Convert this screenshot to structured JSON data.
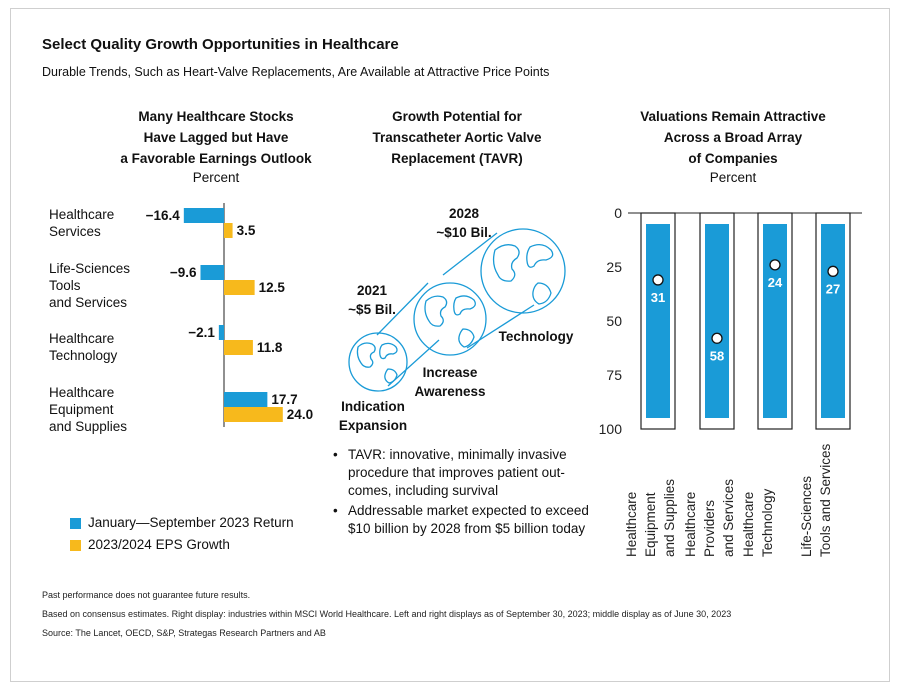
{
  "header": {
    "title": "Select Quality Growth Opportunities in Healthcare",
    "subtitle": "Durable Trends, Such as Heart-Valve Replacements, Are Available at Attractive Price Points"
  },
  "left_panel": {
    "title_lines": [
      "Many Healthcare Stocks",
      "Have Lagged but Have",
      "a Favorable Earnings Outlook"
    ],
    "unit": "Percent",
    "category_lines": [
      [
        "Healthcare",
        "Services"
      ],
      [
        "Life-Sciences",
        "Tools",
        "and Services"
      ],
      [
        "Healthcare",
        "Technology"
      ],
      [
        "Healthcare",
        "Equipment",
        "and Supplies"
      ]
    ],
    "legend": [
      {
        "label": "January—September 2023 Return",
        "color": "#1a9bd7"
      },
      {
        "label": "2023/2024 EPS Growth",
        "color": "#f7b91c"
      }
    ]
  },
  "middle_panel": {
    "title_lines": [
      "Growth Potential for",
      "Transcatheter Aortic Valve",
      "Replacement (TAVR)"
    ],
    "label_2028": [
      "2028",
      "~$10 Bil."
    ],
    "label_2021": [
      "2021",
      "~$5 Bil."
    ],
    "stage_technology": "Technology",
    "stage_awareness": [
      "Increase",
      "Awareness"
    ],
    "stage_indication": [
      "Indication",
      "Expansion"
    ],
    "bullets": [
      "TAVR: innovative, minimally invasive procedure that improves patient out-comes, including survival",
      "Addressable market expected to exceed $10 billion by 2028 from $5 billion today"
    ]
  },
  "right_panel": {
    "title_lines": [
      "Valuations Remain Attractive",
      "Across a Broad Array",
      "of Companies"
    ],
    "unit": "Percent",
    "category_lines": [
      [
        "Healthcare",
        "Equipment",
        "and Supplies"
      ],
      [
        "Healthcare",
        "Providers",
        "and Services"
      ],
      [
        "Healthcare",
        "Technology"
      ],
      [
        "Life-Sciences",
        "Tools and Services"
      ]
    ]
  },
  "footnotes": [
    "Past performance does not guarantee future results.",
    "Based on consensus estimates. Right display: industries within MSCI World Healthcare. Left and right displays as of September 30, 2023; middle display as of June 30, 2023",
    "Source: The Lancet, OECD, S&P, Strategas Research Partners and AB"
  ],
  "chart_data": [
    {
      "type": "bar",
      "orientation": "horizontal",
      "categories": [
        "Healthcare Services",
        "Life-Sciences Tools and Services",
        "Healthcare Technology",
        "Healthcare Equipment and Supplies"
      ],
      "series": [
        {
          "name": "January—September 2023 Return",
          "color": "#1a9bd7",
          "values": [
            -16.4,
            -9.6,
            -2.1,
            17.7
          ],
          "labels": [
            "−16.4",
            "−9.6",
            "−2.1",
            "17.7"
          ]
        },
        {
          "name": "2023/2024 EPS Growth",
          "color": "#f7b91c",
          "values": [
            3.5,
            12.5,
            11.8,
            24.0
          ],
          "labels": [
            "3.5",
            "12.5",
            "11.8",
            "24.0"
          ]
        }
      ],
      "legend": "bottom-left"
    },
    {
      "type": "bar",
      "orientation": "vertical",
      "categories": [
        "Healthcare Equipment and Supplies",
        "Healthcare Providers and Services",
        "Healthcare Technology",
        "Life-Sciences Tools and Services"
      ],
      "values": [
        31,
        58,
        24,
        27
      ],
      "labels": [
        "31",
        "58",
        "24",
        "27"
      ],
      "bar_color": "#1a9bd7",
      "ylim": [
        0,
        100
      ],
      "yaxis_inverted": true,
      "yticks": [
        0,
        25,
        50,
        75,
        100
      ],
      "ytick_labels": [
        "0",
        "25",
        "50",
        "75",
        "100"
      ],
      "grid": false
    }
  ]
}
